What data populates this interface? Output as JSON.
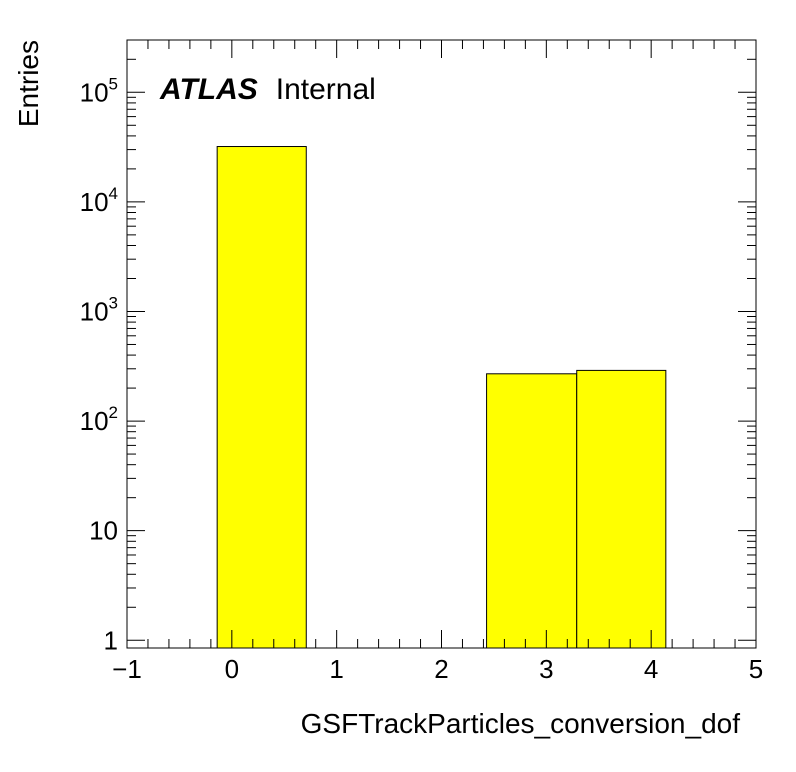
{
  "chart_data": {
    "type": "bar",
    "title": "",
    "xlabel": "GSFTrackParticles_conversion_dof",
    "ylabel": "Entries",
    "xlim": [
      -1,
      5
    ],
    "ylim": [
      0.85,
      300000
    ],
    "yscale": "log",
    "grid": false,
    "fill_color": "#ffff00",
    "edge_color": "#000000",
    "x_ticks": [
      "−1",
      "0",
      "1",
      "2",
      "3",
      "4",
      "5"
    ],
    "y_ticks": [
      {
        "value": 1,
        "base": "1",
        "exp": ""
      },
      {
        "value": 10,
        "base": "10",
        "exp": ""
      },
      {
        "value": 100,
        "base": "10",
        "exp": "2"
      },
      {
        "value": 1000,
        "base": "10",
        "exp": "3"
      },
      {
        "value": 10000,
        "base": "10",
        "exp": "4"
      },
      {
        "value": 100000,
        "base": "10",
        "exp": "5"
      }
    ],
    "bins": [
      {
        "low": -0.14,
        "high": 0.71,
        "value": 32000
      },
      {
        "low": 2.43,
        "high": 3.29,
        "value": 270
      },
      {
        "low": 3.29,
        "high": 4.14,
        "value": 290
      }
    ],
    "annotation": {
      "bold": "ATLAS",
      "text": "Internal"
    }
  }
}
